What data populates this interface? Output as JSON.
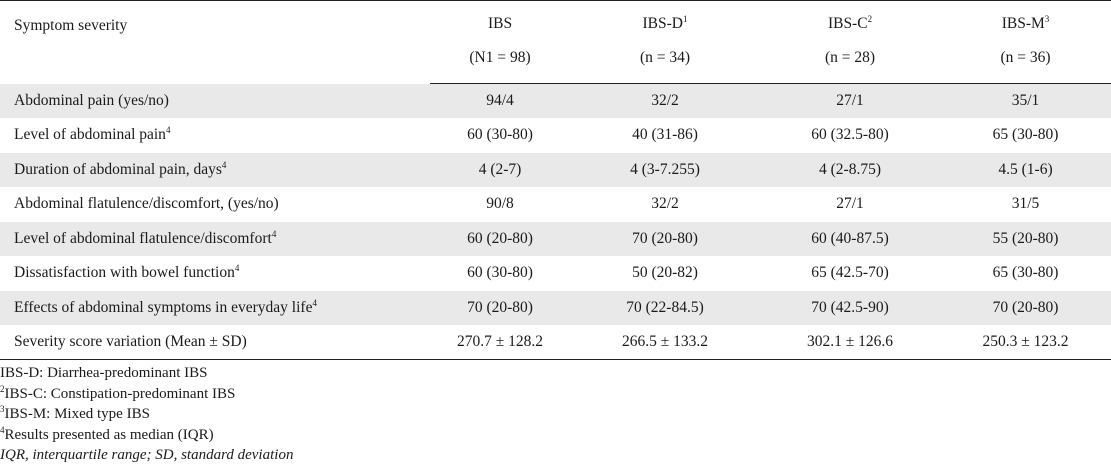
{
  "header": {
    "col0": "Symptom severity",
    "cols": [
      {
        "name": "IBS",
        "sup": "",
        "n": "(N1 = 98)"
      },
      {
        "name": "IBS-D",
        "sup": "1",
        "n": "(n = 34)"
      },
      {
        "name": "IBS-C",
        "sup": "2",
        "n": "(n = 28)"
      },
      {
        "name": "IBS-M",
        "sup": "3",
        "n": "(n = 36)"
      }
    ]
  },
  "rows": [
    {
      "label": "Abdominal pain (yes/no)",
      "sup": "",
      "values": [
        "94/4",
        "32/2",
        "27/1",
        "35/1"
      ]
    },
    {
      "label": "Level of abdominal pain",
      "sup": "4",
      "values": [
        "60 (30-80)",
        "40 (31-86)",
        "60 (32.5-80)",
        "65 (30-80)"
      ]
    },
    {
      "label": "Duration of abdominal pain, days",
      "sup": "4",
      "values": [
        "4 (2-7)",
        "4 (3-7.255)",
        "4 (2-8.75)",
        "4.5 (1-6)"
      ]
    },
    {
      "label": "Abdominal flatulence/discomfort, (yes/no)",
      "sup": "",
      "values": [
        "90/8",
        "32/2",
        "27/1",
        "31/5"
      ]
    },
    {
      "label": "Level of abdominal flatulence/discomfort",
      "sup": "4",
      "values": [
        "60 (20-80)",
        "70 (20-80)",
        "60 (40-87.5)",
        "55 (20-80)"
      ]
    },
    {
      "label": "Dissatisfaction with bowel function",
      "sup": "4",
      "values": [
        "60 (30-80)",
        "50 (20-82)",
        "65 (42.5-70)",
        "65 (30-80)"
      ]
    },
    {
      "label": "Effects of abdominal symptoms in everyday life",
      "sup": "4",
      "values": [
        "70 (20-80)",
        "70 (22-84.5)",
        "70 (42.5-90)",
        "70 (20-80)"
      ]
    },
    {
      "label": "Severity score variation (Mean ± SD)",
      "sup": "",
      "values": [
        "270.7 ± 128.2",
        "266.5 ± 133.2",
        "302.1 ± 126.6",
        "250.3 ± 123.2"
      ]
    }
  ],
  "notes": [
    {
      "sup": "",
      "text": "IBS-D: Diarrhea-predominant IBS",
      "italic": false
    },
    {
      "sup": "2",
      "text": "IBS-C: Constipation-predominant IBS",
      "italic": false
    },
    {
      "sup": "3",
      "text": "IBS-M: Mixed type IBS",
      "italic": false
    },
    {
      "sup": "4",
      "text": "Results presented as median (IQR)",
      "italic": false
    },
    {
      "sup": "",
      "text": "IQR, interquartile range; SD, standard deviation",
      "italic": true
    }
  ]
}
